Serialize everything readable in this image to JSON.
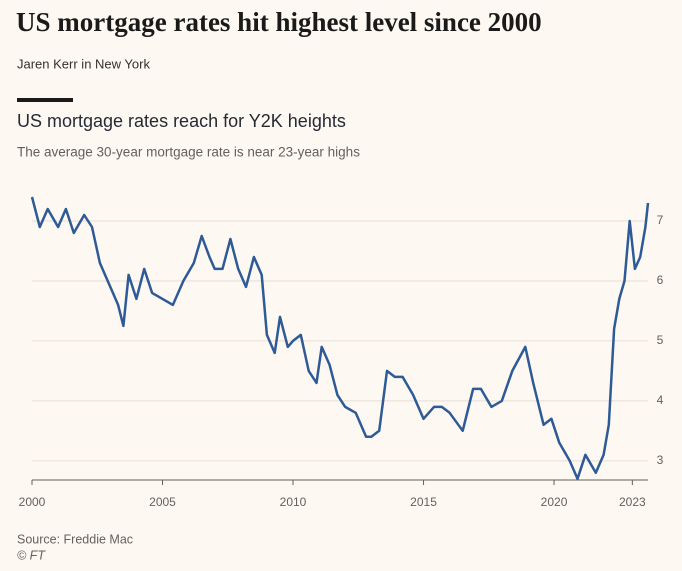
{
  "article": {
    "headline": "US mortgage rates hit highest level since 2000",
    "byline": "Jaren Kerr in New York"
  },
  "chart_data": {
    "type": "line",
    "title": "US mortgage rates reach for Y2K heights",
    "subtitle": "The average 30-year mortgage rate is near 23-year highs",
    "source": "Source: Freddie Mac",
    "credit": "© FT",
    "x": [
      2000.0,
      2000.3,
      2000.6,
      2001.0,
      2001.3,
      2001.6,
      2002.0,
      2002.3,
      2002.6,
      2003.0,
      2003.3,
      2003.5,
      2003.7,
      2004.0,
      2004.3,
      2004.6,
      2005.0,
      2005.4,
      2005.8,
      2006.2,
      2006.5,
      2006.8,
      2007.0,
      2007.3,
      2007.6,
      2007.9,
      2008.2,
      2008.5,
      2008.8,
      2009.0,
      2009.3,
      2009.5,
      2009.8,
      2010.0,
      2010.3,
      2010.6,
      2010.9,
      2011.1,
      2011.4,
      2011.7,
      2012.0,
      2012.4,
      2012.8,
      2013.0,
      2013.3,
      2013.6,
      2013.9,
      2014.2,
      2014.6,
      2015.0,
      2015.4,
      2015.7,
      2016.0,
      2016.5,
      2016.9,
      2017.2,
      2017.6,
      2018.0,
      2018.4,
      2018.9,
      2019.2,
      2019.6,
      2019.9,
      2020.2,
      2020.6,
      2020.9,
      2021.2,
      2021.6,
      2021.9,
      2022.1,
      2022.3,
      2022.5,
      2022.7,
      2022.9,
      2023.1,
      2023.3,
      2023.5,
      2023.6
    ],
    "series": [
      {
        "name": "30-year mortgage rate",
        "color": "#2e5a96",
        "values": [
          7.4,
          6.9,
          7.2,
          6.9,
          7.2,
          6.8,
          7.1,
          6.9,
          6.3,
          5.9,
          5.6,
          5.25,
          6.1,
          5.7,
          6.2,
          5.8,
          5.7,
          5.6,
          6.0,
          6.3,
          6.75,
          6.4,
          6.2,
          6.2,
          6.7,
          6.2,
          5.9,
          6.4,
          6.1,
          5.1,
          4.8,
          5.4,
          4.9,
          5.0,
          5.1,
          4.5,
          4.3,
          4.9,
          4.6,
          4.1,
          3.9,
          3.8,
          3.4,
          3.4,
          3.5,
          4.5,
          4.4,
          4.4,
          4.1,
          3.7,
          3.9,
          3.9,
          3.8,
          3.5,
          4.2,
          4.2,
          3.9,
          4.0,
          4.5,
          4.9,
          4.3,
          3.6,
          3.7,
          3.3,
          3.0,
          2.7,
          3.1,
          2.8,
          3.1,
          3.6,
          5.2,
          5.7,
          6.0,
          7.0,
          6.2,
          6.4,
          6.9,
          7.3
        ]
      }
    ],
    "xlim": [
      2000,
      2023.6
    ],
    "ylim": [
      2.68,
      7.5
    ],
    "xticks": [
      2000,
      2005,
      2010,
      2015,
      2020,
      2023
    ],
    "yticks": [
      3,
      4,
      5,
      6,
      7
    ],
    "grid": true
  }
}
